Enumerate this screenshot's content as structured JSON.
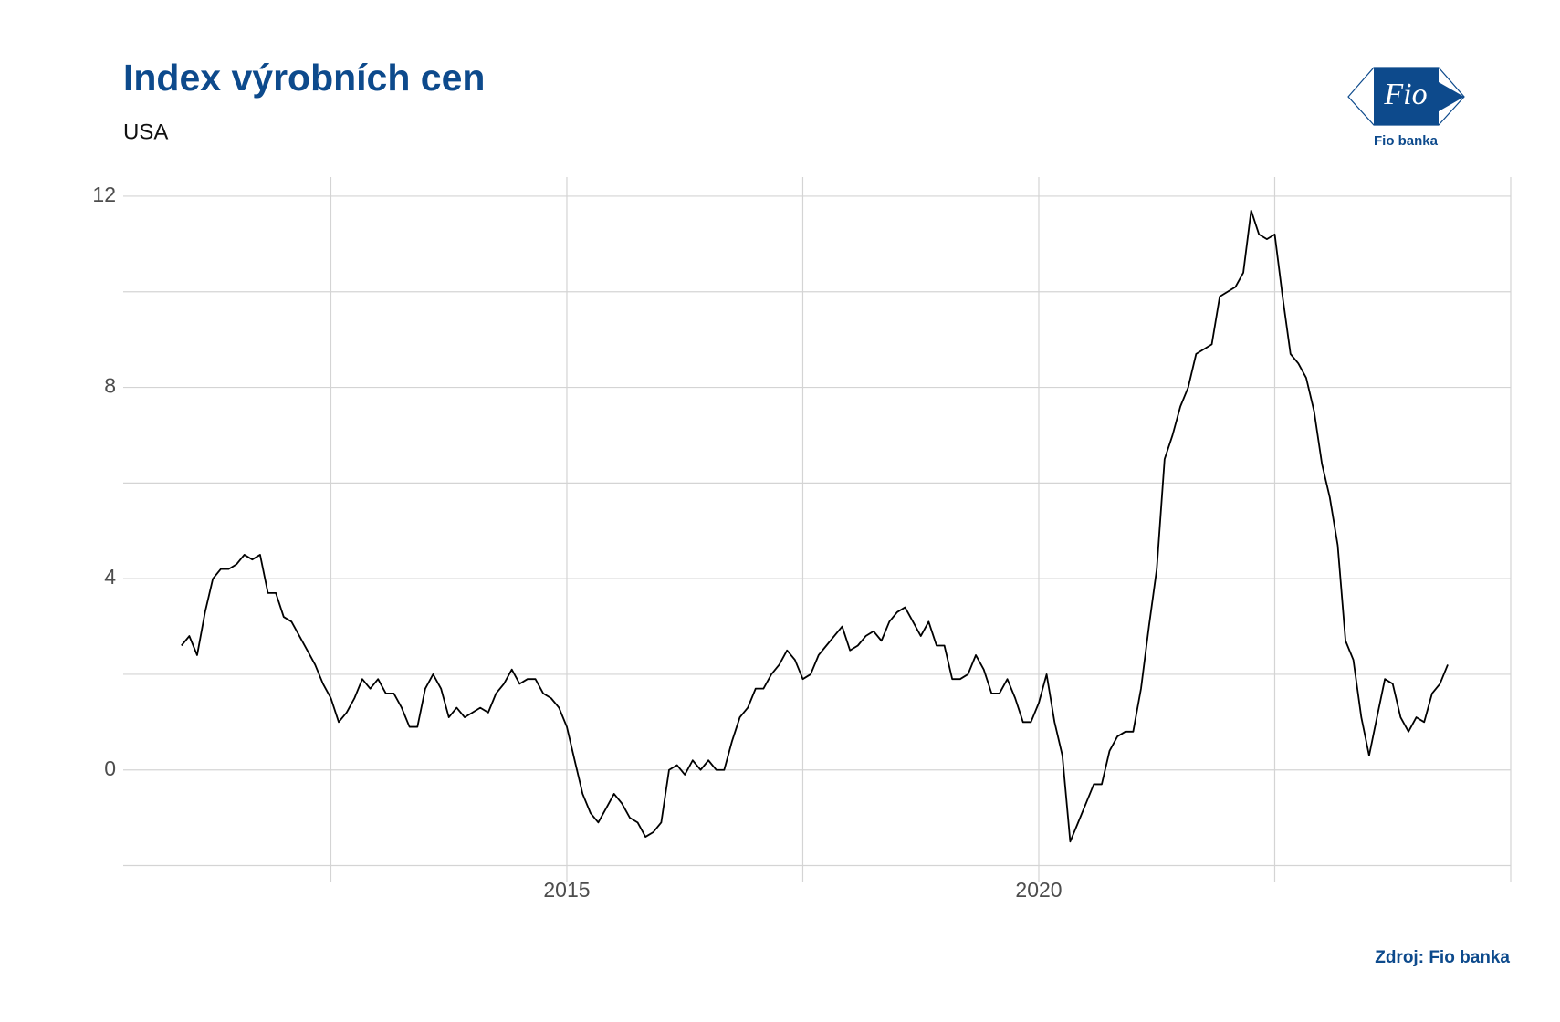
{
  "chart_data": {
    "type": "line",
    "title": "Index výrobních cen",
    "subtitle": "USA",
    "source": "Zdroj: Fio banka",
    "x": [
      2010.917,
      2011,
      2011.083,
      2011.167,
      2011.25,
      2011.333,
      2011.417,
      2011.5,
      2011.583,
      2011.667,
      2011.75,
      2011.833,
      2011.917,
      2012,
      2012.083,
      2012.167,
      2012.25,
      2012.333,
      2012.417,
      2012.5,
      2012.583,
      2012.667,
      2012.75,
      2012.833,
      2012.917,
      2013,
      2013.083,
      2013.167,
      2013.25,
      2013.333,
      2013.417,
      2013.5,
      2013.583,
      2013.667,
      2013.75,
      2013.833,
      2013.917,
      2014,
      2014.083,
      2014.167,
      2014.25,
      2014.333,
      2014.417,
      2014.5,
      2014.583,
      2014.667,
      2014.75,
      2014.833,
      2014.917,
      2015,
      2015.083,
      2015.167,
      2015.25,
      2015.333,
      2015.417,
      2015.5,
      2015.583,
      2015.667,
      2015.75,
      2015.833,
      2015.917,
      2016,
      2016.083,
      2016.167,
      2016.25,
      2016.333,
      2016.417,
      2016.5,
      2016.583,
      2016.667,
      2016.75,
      2016.833,
      2016.917,
      2017,
      2017.083,
      2017.167,
      2017.25,
      2017.333,
      2017.417,
      2017.5,
      2017.583,
      2017.667,
      2017.75,
      2017.833,
      2017.917,
      2018,
      2018.083,
      2018.167,
      2018.25,
      2018.333,
      2018.417,
      2018.5,
      2018.583,
      2018.667,
      2018.75,
      2018.833,
      2018.917,
      2019,
      2019.083,
      2019.167,
      2019.25,
      2019.333,
      2019.417,
      2019.5,
      2019.583,
      2019.667,
      2019.75,
      2019.833,
      2019.917,
      2020,
      2020.083,
      2020.167,
      2020.25,
      2020.333,
      2020.417,
      2020.5,
      2020.583,
      2020.667,
      2020.75,
      2020.833,
      2020.917,
      2021,
      2021.083,
      2021.167,
      2021.25,
      2021.333,
      2021.417,
      2021.5,
      2021.583,
      2021.667,
      2021.75,
      2021.833,
      2021.917,
      2022,
      2022.083,
      2022.167,
      2022.25,
      2022.333,
      2022.417,
      2022.5,
      2022.583,
      2022.667,
      2022.75,
      2022.833,
      2022.917,
      2023,
      2023.083,
      2023.167,
      2023.25,
      2023.333,
      2023.417,
      2023.5,
      2023.583,
      2023.667,
      2023.75,
      2023.833,
      2023.917,
      2024,
      2024.083,
      2024.167,
      2024.25,
      2024.333
    ],
    "series": [
      {
        "color": "#000000",
        "values": [
          2.6,
          2.8,
          2.4,
          3.3,
          4.0,
          4.2,
          4.2,
          4.3,
          4.5,
          4.4,
          4.5,
          3.7,
          3.7,
          3.2,
          3.1,
          2.8,
          2.5,
          2.2,
          1.8,
          1.5,
          1.0,
          1.2,
          1.5,
          1.9,
          1.7,
          1.9,
          1.6,
          1.6,
          1.3,
          0.9,
          0.9,
          1.7,
          2.0,
          1.7,
          1.1,
          1.3,
          1.1,
          1.2,
          1.3,
          1.2,
          1.6,
          1.8,
          2.1,
          1.8,
          1.9,
          1.9,
          1.6,
          1.5,
          1.3,
          0.9,
          0.2,
          -0.5,
          -0.9,
          -1.1,
          -0.8,
          -0.5,
          -0.7,
          -1.0,
          -1.1,
          -1.4,
          -1.3,
          -1.1,
          0.0,
          0.1,
          -0.1,
          0.2,
          0.0,
          0.2,
          0.0,
          0.0,
          0.6,
          1.1,
          1.3,
          1.7,
          1.7,
          2.0,
          2.2,
          2.5,
          2.3,
          1.9,
          2.0,
          2.4,
          2.6,
          2.8,
          3.0,
          2.5,
          2.6,
          2.8,
          2.9,
          2.7,
          3.1,
          3.3,
          3.4,
          3.1,
          2.8,
          3.1,
          2.6,
          2.6,
          1.9,
          1.9,
          2.0,
          2.4,
          2.1,
          1.6,
          1.6,
          1.9,
          1.5,
          1.0,
          1.0,
          1.4,
          2.0,
          1.0,
          0.3,
          -1.5,
          -1.1,
          -0.7,
          -0.3,
          -0.3,
          0.4,
          0.7,
          0.8,
          0.8,
          1.7,
          3.0,
          4.2,
          6.5,
          7.0,
          7.6,
          8.0,
          8.7,
          8.8,
          8.9,
          9.9,
          10.0,
          10.1,
          10.4,
          11.7,
          11.2,
          11.1,
          11.2,
          9.9,
          8.7,
          8.5,
          8.2,
          7.5,
          6.4,
          5.7,
          4.7,
          2.7,
          2.3,
          1.1,
          0.3,
          1.1,
          1.9,
          1.8,
          1.1,
          0.8,
          1.1,
          1.0,
          1.6,
          1.8,
          2.2
        ]
      }
    ],
    "xlim": [
      2010.3,
      2025
    ],
    "xticks": [
      2015,
      2020
    ],
    "xminorticks": [
      2012.5,
      2017.5,
      2022.5,
      2025
    ],
    "ylim": [
      -2.2,
      12.4
    ],
    "yticks": [
      0,
      4,
      8,
      12
    ],
    "yminorticks": [
      -2,
      2,
      6,
      10
    ],
    "grid": true
  },
  "logo": {
    "mark": "Fio",
    "name": "Fio banka"
  }
}
